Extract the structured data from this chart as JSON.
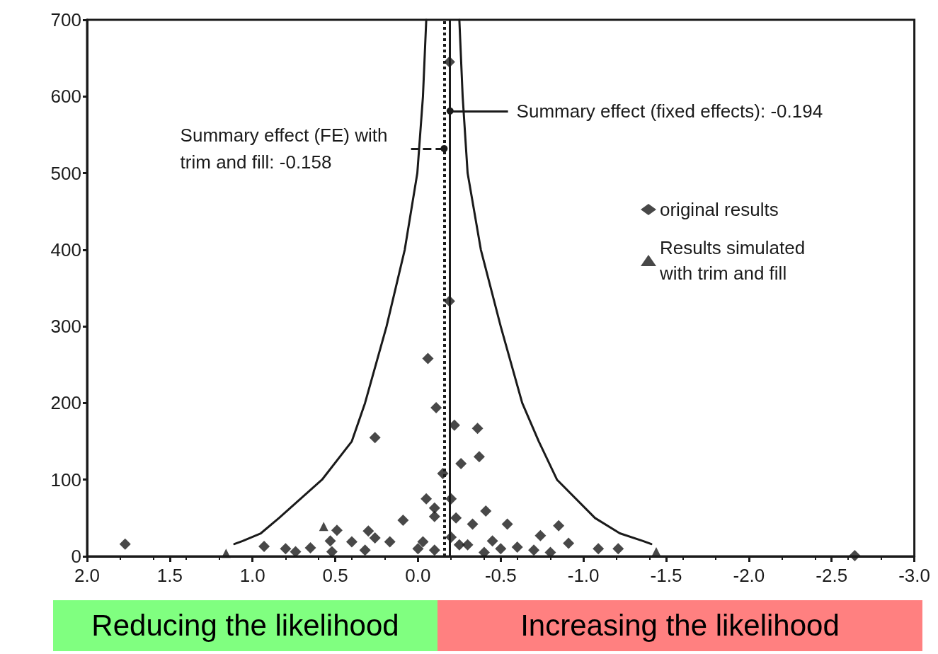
{
  "chart_data": {
    "type": "scatter",
    "xlim": [
      2.0,
      -3.0
    ],
    "xticks": [
      {
        "value": 2,
        "label": "2.0"
      },
      {
        "value": 1.5,
        "label": "1.5"
      },
      {
        "value": 1,
        "label": "1.0"
      },
      {
        "value": 0.5,
        "label": "0.5"
      },
      {
        "value": 0,
        "label": "0.0"
      },
      {
        "value": -0.5,
        "label": "-0.5"
      },
      {
        "value": -1,
        "label": "-1.0"
      },
      {
        "value": -1.5,
        "label": "-1.5"
      },
      {
        "value": -2,
        "label": "-2.0"
      },
      {
        "value": -2.5,
        "label": "-2.5"
      },
      {
        "value": -3,
        "label": "-3.0"
      }
    ],
    "ylim": [
      0,
      700
    ],
    "yticks": [
      0,
      100,
      200,
      300,
      400,
      500,
      600,
      700
    ],
    "grid": false,
    "legend": "top right",
    "series": [
      {
        "name": "original results",
        "marker": "diamond",
        "color": "#1a1a1a",
        "x": [
          1.77,
          0.26,
          -0.06,
          -0.11,
          -0.19,
          -0.19,
          -0.22,
          -0.26,
          -0.36,
          -0.37,
          -0.15,
          -0.05,
          -0.2,
          -0.1,
          -0.1,
          -0.23,
          0.09,
          -0.41,
          -0.85,
          -0.33,
          -0.54,
          -0.74,
          0.17,
          -0.03,
          -0.91,
          -1.09,
          -1.21,
          -2.64,
          0.93,
          0.8,
          0.65,
          0.49,
          0.53,
          0.4,
          0.3,
          0.26,
          0.52,
          0.32,
          0.74,
          0.0,
          -0.1,
          -0.3,
          -0.45,
          -0.5,
          -0.6,
          -0.7,
          -0.8,
          -0.4,
          -0.2,
          -0.25
        ],
        "values": [
          16,
          155,
          258,
          194,
          645,
          333,
          171,
          121,
          167,
          130,
          108,
          75,
          75,
          63,
          52,
          50,
          47,
          59,
          40,
          42,
          42,
          27,
          19,
          19,
          17,
          10,
          10,
          1,
          13,
          10,
          11,
          34,
          20,
          19,
          33,
          24,
          6,
          8,
          6,
          10,
          8,
          15,
          20,
          10,
          12,
          8,
          5,
          5,
          25,
          15
        ]
      },
      {
        "name": "Results simulated with trim and fill",
        "marker": "triangle",
        "color": "#1a1a1a",
        "x": [
          1.16,
          0.57,
          -1.44
        ],
        "values": [
          4,
          39,
          6
        ]
      },
      {
        "type": "line",
        "marker": "none",
        "color": "#1a1a1a",
        "x": [
          1.11,
          1.06,
          0.95,
          0.84,
          0.58,
          0.4,
          0.32,
          0.19,
          0.08,
          0.004,
          -0.03,
          -0.05
        ],
        "values": [
          16,
          20,
          30,
          50,
          100,
          150,
          200,
          300,
          400,
          500,
          600,
          700
        ]
      },
      {
        "type": "line",
        "marker": "none",
        "color": "#1a1a1a",
        "x": [
          -1.41,
          -1.36,
          -1.22,
          -1.07,
          -0.84,
          -0.73,
          -0.63,
          -0.5,
          -0.38,
          -0.3,
          -0.27,
          -0.25
        ],
        "values": [
          16,
          20,
          30,
          50,
          100,
          150,
          200,
          300,
          400,
          500,
          600,
          700
        ]
      }
    ],
    "ref_lines": [
      {
        "axis": "x",
        "value": -0.194,
        "line_style": "solid",
        "color": "#1a1a1a",
        "label": "Summary effect (fixed effects): -0.194"
      },
      {
        "axis": "x",
        "value": -0.158,
        "line_style": "dotted",
        "color": "#1a1a1a",
        "label": "Summary effect (FE) with trim and fill: -0.158"
      }
    ],
    "annotations": [
      "Reducing the likelihood",
      "Increasing the likelihood"
    ]
  }
}
